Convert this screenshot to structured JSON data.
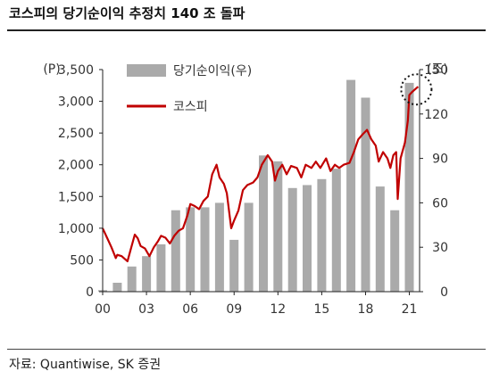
{
  "title": "코스피의 당기순이익 추정치 140 조 돌파",
  "source": "자료: Quantiwise, SK 증권",
  "colors": {
    "bar": "#aaaaaa",
    "line": "#c00000",
    "axis": "#222222",
    "text": "#333333"
  },
  "chart_data": {
    "type": "bar+line",
    "title": "코스피의 당기순이익 추정치 140 조 돌파",
    "left_axis": {
      "unit_label": "(P)",
      "range": [
        0,
        3500
      ],
      "ticks": [
        0,
        500,
        1000,
        1500,
        2000,
        2500,
        3000,
        3500
      ],
      "tick_labels": [
        "0",
        "500",
        "1,000",
        "1,500",
        "2,000",
        "2,500",
        "3,000",
        "3,500"
      ]
    },
    "right_axis": {
      "unit_label": "(조)",
      "range": [
        0,
        150
      ],
      "ticks": [
        0,
        30,
        60,
        90,
        120,
        150
      ],
      "tick_labels": [
        "0",
        "30",
        "60",
        "90",
        "120",
        "150"
      ]
    },
    "x_axis": {
      "range": [
        2000,
        2021.7
      ],
      "ticks": [
        2000,
        2003,
        2006,
        2009,
        2012,
        2015,
        2018,
        2021
      ],
      "tick_labels": [
        "00",
        "03",
        "06",
        "09",
        "12",
        "15",
        "18",
        "21"
      ]
    },
    "legend": {
      "position": "top-center",
      "bar_label": "당기순이익(우)",
      "line_label": "코스피"
    },
    "annotation": "dotted circle highlighting the 2021 peak",
    "series": [
      {
        "name": "당기순이익(우)",
        "type": "bar",
        "axis": "right",
        "x": [
          2000,
          2001,
          2002,
          2003,
          2004,
          2005,
          2006,
          2007,
          2008,
          2009,
          2010,
          2011,
          2012,
          2013,
          2014,
          2015,
          2016,
          2017,
          2018,
          2019,
          2020,
          2021
        ],
        "values": [
          1,
          6,
          17,
          24,
          32,
          55,
          57,
          57,
          60,
          35,
          60,
          92,
          88,
          70,
          72,
          76,
          83,
          143,
          131,
          71,
          55,
          141
        ]
      },
      {
        "name": "코스피",
        "type": "line",
        "axis": "left",
        "points": [
          [
            2000.0,
            1000
          ],
          [
            2000.3,
            850
          ],
          [
            2000.6,
            700
          ],
          [
            2000.9,
            530
          ],
          [
            2001.0,
            580
          ],
          [
            2001.3,
            560
          ],
          [
            2001.7,
            480
          ],
          [
            2001.9,
            650
          ],
          [
            2002.2,
            900
          ],
          [
            2002.4,
            840
          ],
          [
            2002.6,
            720
          ],
          [
            2002.9,
            680
          ],
          [
            2003.2,
            560
          ],
          [
            2003.5,
            700
          ],
          [
            2003.8,
            800
          ],
          [
            2004.0,
            880
          ],
          [
            2004.3,
            850
          ],
          [
            2004.6,
            760
          ],
          [
            2004.9,
            880
          ],
          [
            2005.2,
            960
          ],
          [
            2005.5,
            1000
          ],
          [
            2005.8,
            1200
          ],
          [
            2006.0,
            1380
          ],
          [
            2006.3,
            1350
          ],
          [
            2006.6,
            1300
          ],
          [
            2006.9,
            1430
          ],
          [
            2007.2,
            1500
          ],
          [
            2007.5,
            1850
          ],
          [
            2007.8,
            2000
          ],
          [
            2008.0,
            1800
          ],
          [
            2008.3,
            1700
          ],
          [
            2008.5,
            1550
          ],
          [
            2008.8,
            1000
          ],
          [
            2009.0,
            1120
          ],
          [
            2009.3,
            1280
          ],
          [
            2009.6,
            1600
          ],
          [
            2009.9,
            1680
          ],
          [
            2010.3,
            1720
          ],
          [
            2010.6,
            1800
          ],
          [
            2010.9,
            2000
          ],
          [
            2011.3,
            2150
          ],
          [
            2011.6,
            2050
          ],
          [
            2011.8,
            1750
          ],
          [
            2012.0,
            1900
          ],
          [
            2012.3,
            2000
          ],
          [
            2012.6,
            1850
          ],
          [
            2012.9,
            1980
          ],
          [
            2013.3,
            1950
          ],
          [
            2013.6,
            1800
          ],
          [
            2013.9,
            2000
          ],
          [
            2014.3,
            1950
          ],
          [
            2014.6,
            2050
          ],
          [
            2014.9,
            1950
          ],
          [
            2015.3,
            2100
          ],
          [
            2015.6,
            1900
          ],
          [
            2015.9,
            2000
          ],
          [
            2016.2,
            1950
          ],
          [
            2016.5,
            2000
          ],
          [
            2016.9,
            2030
          ],
          [
            2017.2,
            2200
          ],
          [
            2017.5,
            2400
          ],
          [
            2017.8,
            2480
          ],
          [
            2018.1,
            2550
          ],
          [
            2018.4,
            2400
          ],
          [
            2018.7,
            2300
          ],
          [
            2018.9,
            2050
          ],
          [
            2019.2,
            2200
          ],
          [
            2019.5,
            2100
          ],
          [
            2019.7,
            1950
          ],
          [
            2019.9,
            2150
          ],
          [
            2020.1,
            2200
          ],
          [
            2020.2,
            1460
          ],
          [
            2020.4,
            2100
          ],
          [
            2020.7,
            2350
          ],
          [
            2020.9,
            2700
          ],
          [
            2021.0,
            3100
          ],
          [
            2021.2,
            3150
          ],
          [
            2021.45,
            3200
          ],
          [
            2021.6,
            3230
          ]
        ]
      }
    ]
  }
}
